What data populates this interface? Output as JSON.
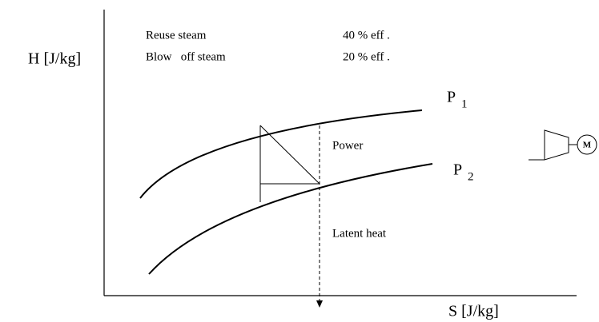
{
  "axes": {
    "y_label": "H [J/kg]",
    "x_label": "S [J/kg]"
  },
  "legend": [
    {
      "label": "Reuse steam",
      "value": "40 % eff ."
    },
    {
      "label": "Blow   off steam",
      "value": "20 % eff ."
    }
  ],
  "curves": [
    {
      "label": "P",
      "subscript": "1"
    },
    {
      "label": "P",
      "subscript": "2"
    }
  ],
  "annotations": {
    "power": "Power",
    "latent": "Latent heat"
  },
  "motor": "M"
}
